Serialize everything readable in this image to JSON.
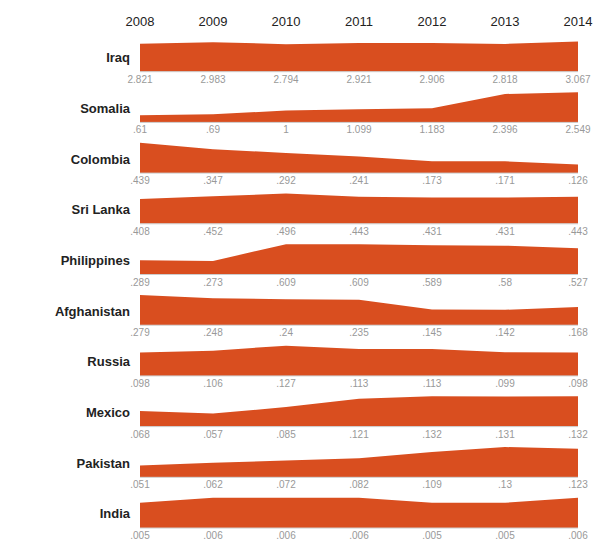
{
  "chart_data": [
    {
      "type": "area",
      "title": "Iraq",
      "categories": [
        2008,
        2009,
        2010,
        2011,
        2012,
        2013,
        2014
      ],
      "values": [
        2.821,
        2.983,
        2.794,
        2.921,
        2.906,
        2.818,
        3.067
      ],
      "value_labels": [
        "2.821",
        "2.983",
        "2.794",
        "2.921",
        "2.906",
        "2.818",
        "3.067"
      ],
      "color": "#D94E1F",
      "ylim": [
        0,
        3.61906
      ],
      "data_labels": true,
      "tick_labels": "x"
    },
    {
      "type": "area",
      "title": "Somalia",
      "categories": [
        2008,
        2009,
        2010,
        2011,
        2012,
        2013,
        2014
      ],
      "values": [
        0.61,
        0.69,
        1.0,
        1.099,
        1.183,
        2.396,
        2.549
      ],
      "value_labels": [
        ".61",
        ".69",
        "1",
        "1.099",
        "1.183",
        "2.396",
        "2.549"
      ],
      "color": "#D94E1F",
      "ylim": [
        0,
        3.00782
      ],
      "data_labels": true,
      "tick_labels": false
    },
    {
      "type": "area",
      "title": "Colombia",
      "categories": [
        2008,
        2009,
        2010,
        2011,
        2012,
        2013,
        2014
      ],
      "values": [
        0.439,
        0.347,
        0.292,
        0.241,
        0.173,
        0.171,
        0.126
      ],
      "value_labels": [
        ".439",
        ".347",
        ".292",
        ".241",
        ".173",
        ".171",
        ".126"
      ],
      "color": "#D94E1F",
      "ylim": [
        0,
        0.51802
      ],
      "data_labels": true,
      "tick_labels": false
    },
    {
      "type": "area",
      "title": "Sri Lanka",
      "categories": [
        2008,
        2009,
        2010,
        2011,
        2012,
        2013,
        2014
      ],
      "values": [
        0.408,
        0.452,
        0.496,
        0.443,
        0.431,
        0.431,
        0.443
      ],
      "value_labels": [
        ".408",
        ".452",
        ".496",
        ".443",
        ".431",
        ".431",
        ".443"
      ],
      "color": "#D94E1F",
      "ylim": [
        0,
        0.58528
      ],
      "data_labels": true,
      "tick_labels": false
    },
    {
      "type": "area",
      "title": "Philippines",
      "categories": [
        2008,
        2009,
        2010,
        2011,
        2012,
        2013,
        2014
      ],
      "values": [
        0.289,
        0.273,
        0.609,
        0.609,
        0.589,
        0.58,
        0.527
      ],
      "value_labels": [
        ".289",
        ".273",
        ".609",
        ".609",
        ".589",
        ".58",
        ".527"
      ],
      "color": "#D94E1F",
      "ylim": [
        0,
        0.71862
      ],
      "data_labels": true,
      "tick_labels": false
    },
    {
      "type": "area",
      "title": "Afghanistan",
      "categories": [
        2008,
        2009,
        2010,
        2011,
        2012,
        2013,
        2014
      ],
      "values": [
        0.279,
        0.248,
        0.24,
        0.235,
        0.145,
        0.142,
        0.168
      ],
      "value_labels": [
        ".279",
        ".248",
        ".24",
        ".235",
        ".145",
        ".142",
        ".168"
      ],
      "color": "#D94E1F",
      "ylim": [
        0,
        0.32922
      ],
      "data_labels": true,
      "tick_labels": false
    },
    {
      "type": "area",
      "title": "Russia",
      "categories": [
        2008,
        2009,
        2010,
        2011,
        2012,
        2013,
        2014
      ],
      "values": [
        0.098,
        0.106,
        0.127,
        0.113,
        0.113,
        0.099,
        0.098
      ],
      "value_labels": [
        ".098",
        ".106",
        ".127",
        ".113",
        ".113",
        ".099",
        ".098"
      ],
      "color": "#D94E1F",
      "ylim": [
        0,
        0.14986
      ],
      "data_labels": true,
      "tick_labels": false
    },
    {
      "type": "area",
      "title": "Mexico",
      "categories": [
        2008,
        2009,
        2010,
        2011,
        2012,
        2013,
        2014
      ],
      "values": [
        0.068,
        0.057,
        0.085,
        0.121,
        0.132,
        0.131,
        0.132
      ],
      "value_labels": [
        ".068",
        ".057",
        ".085",
        ".121",
        ".132",
        ".131",
        ".132"
      ],
      "color": "#D94E1F",
      "ylim": [
        0,
        0.15576
      ],
      "data_labels": true,
      "tick_labels": false
    },
    {
      "type": "area",
      "title": "Pakistan",
      "categories": [
        2008,
        2009,
        2010,
        2011,
        2012,
        2013,
        2014
      ],
      "values": [
        0.051,
        0.062,
        0.072,
        0.082,
        0.109,
        0.13,
        0.123
      ],
      "value_labels": [
        ".051",
        ".062",
        ".072",
        ".082",
        ".109",
        ".13",
        ".123"
      ],
      "color": "#D94E1F",
      "ylim": [
        0,
        0.1534
      ],
      "data_labels": true,
      "tick_labels": false
    },
    {
      "type": "area",
      "title": "India",
      "categories": [
        2008,
        2009,
        2010,
        2011,
        2012,
        2013,
        2014
      ],
      "values": [
        0.005,
        0.006,
        0.006,
        0.006,
        0.005,
        0.005,
        0.006
      ],
      "value_labels": [
        ".005",
        ".006",
        ".006",
        ".006",
        ".005",
        ".005",
        ".006"
      ],
      "color": "#D94E1F",
      "ylim": [
        0,
        0.00708
      ],
      "data_labels": true,
      "tick_labels": false
    }
  ]
}
